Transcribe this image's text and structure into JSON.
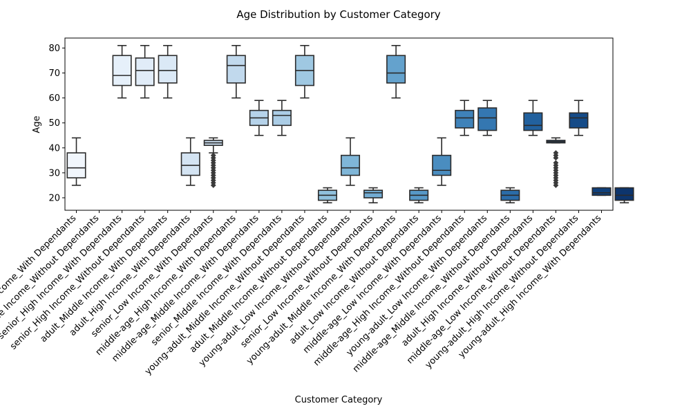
{
  "chart_data": {
    "type": "box",
    "title": "Age Distribution by Customer Category",
    "xlabel": "Customer Category",
    "ylabel": "Age",
    "ylim": [
      15,
      84
    ],
    "yticks": [
      20,
      30,
      40,
      50,
      60,
      70,
      80
    ],
    "grid": false,
    "legend": "none",
    "categories": [
      "adult_Low Income_With Dependants",
      "senior_Middle Income_Without Dependants",
      "senior_High Income_With Dependants",
      "senior_High Income_Without Dependants",
      "adult_Middle Income_With Dependants",
      "adult_High Income_With Dependants",
      "senior_Low Income_With Dependants",
      "middle-age_High Income_With Dependants",
      "middle-age_Middle Income_With Dependants",
      "senior_Middle Income_With Dependants",
      "young-adult_Middle Income_Without Dependants",
      "adult_Middle Income_Without Dependants",
      "young-adult_Low Income_Without Dependants",
      "senior_Low Income_Without Dependants",
      "young-adult_Middle Income_With Dependants",
      "adult_Low Income_Without Dependants",
      "middle-age_Low Income_With Dependants",
      "middle-age_High Income_Without Dependants",
      "young-adult_Low Income_With Dependants",
      "middle-age_Middle Income_Without Dependants",
      "adult_High Income_Without Dependants",
      "middle-age_Low Income_Without Dependants",
      "young-adult_High Income_Without Dependants",
      "young-adult_High Income_With Dependants"
    ],
    "boxes": [
      {
        "whislo": 25,
        "q1": 28,
        "med": 32,
        "q3": 38,
        "whishi": 44,
        "fliers": [],
        "color": "#f1f6fc"
      },
      null,
      {
        "whislo": 60,
        "q1": 65,
        "med": 69,
        "q3": 77,
        "whishi": 81,
        "fliers": [],
        "color": "#e6f0fa"
      },
      {
        "whislo": 60,
        "q1": 65,
        "med": 71,
        "q3": 76,
        "whishi": 81,
        "fliers": [],
        "color": "#e1ecf8"
      },
      {
        "whislo": 60,
        "q1": 66,
        "med": 71,
        "q3": 77,
        "whishi": 81,
        "fliers": [],
        "color": "#dbe9f6"
      },
      {
        "whislo": 25,
        "q1": 29,
        "med": 33,
        "q3": 38,
        "whishi": 44,
        "fliers": [],
        "color": "#d4e4f3"
      },
      {
        "whislo": 38,
        "q1": 41,
        "med": 42,
        "q3": 43,
        "whishi": 44,
        "fliers": [
          25,
          26,
          27,
          28,
          29,
          30,
          31,
          32,
          33,
          34,
          35,
          36,
          37
        ],
        "color": "#cbdef0"
      },
      {
        "whislo": 60,
        "q1": 66,
        "med": 73,
        "q3": 77,
        "whishi": 81,
        "fliers": [],
        "color": "#c1d9ed"
      },
      {
        "whislo": 45,
        "q1": 49,
        "med": 52,
        "q3": 55,
        "whishi": 59,
        "fliers": [],
        "color": "#b6d3ea"
      },
      {
        "whislo": 45,
        "q1": 49,
        "med": 53,
        "q3": 55,
        "whishi": 59,
        "fliers": [],
        "color": "#abcde6"
      },
      {
        "whislo": 60,
        "q1": 65,
        "med": 71,
        "q3": 77,
        "whishi": 81,
        "fliers": [],
        "color": "#9fc8e2"
      },
      {
        "whislo": 18,
        "q1": 19,
        "med": 21,
        "q3": 23,
        "whishi": 24,
        "fliers": [],
        "color": "#90c1dd"
      },
      {
        "whislo": 25,
        "q1": 29,
        "med": 32,
        "q3": 37,
        "whishi": 44,
        "fliers": [],
        "color": "#7fb6d8"
      },
      {
        "whislo": 18,
        "q1": 20,
        "med": 22,
        "q3": 23,
        "whishi": 24,
        "fliers": [],
        "color": "#72acd3"
      },
      {
        "whislo": 60,
        "q1": 66,
        "med": 70,
        "q3": 77,
        "whishi": 81,
        "fliers": [],
        "color": "#64a2cd"
      },
      {
        "whislo": 18,
        "q1": 19,
        "med": 21,
        "q3": 23,
        "whishi": 24,
        "fliers": [],
        "color": "#5798c7"
      },
      {
        "whislo": 25,
        "q1": 29,
        "med": 31,
        "q3": 37,
        "whishi": 44,
        "fliers": [],
        "color": "#4a8dc0"
      },
      {
        "whislo": 45,
        "q1": 48,
        "med": 52,
        "q3": 55,
        "whishi": 59,
        "fliers": [],
        "color": "#3f82b9"
      },
      {
        "whislo": 45,
        "q1": 47,
        "med": 52,
        "q3": 56,
        "whishi": 59,
        "fliers": [],
        "color": "#3477b1"
      },
      {
        "whislo": 18,
        "q1": 19,
        "med": 21,
        "q3": 23,
        "whishi": 24,
        "fliers": [],
        "color": "#2b6ca8"
      },
      {
        "whislo": 45,
        "q1": 47,
        "med": 49,
        "q3": 54,
        "whishi": 59,
        "fliers": [],
        "color": "#22619e"
      },
      {
        "whislo": 42,
        "q1": 42,
        "med": 42.5,
        "q3": 43,
        "whishi": 44,
        "fliers": [
          25,
          26,
          27,
          28,
          29,
          30,
          31,
          32,
          33,
          34,
          36,
          37,
          38
        ],
        "color": "#1b5694"
      },
      {
        "whislo": 45,
        "q1": 48,
        "med": 52,
        "q3": 54,
        "whishi": 59,
        "fliers": [],
        "color": "#154b88"
      },
      {
        "whislo": 21,
        "q1": 21,
        "med": 22,
        "q3": 24,
        "whishi": 24,
        "fliers": [],
        "color": "#10407b"
      },
      {
        "whislo": 18,
        "q1": 19,
        "med": 21,
        "q3": 24,
        "whishi": 24,
        "fliers": [],
        "color": "#0d356d"
      }
    ]
  }
}
